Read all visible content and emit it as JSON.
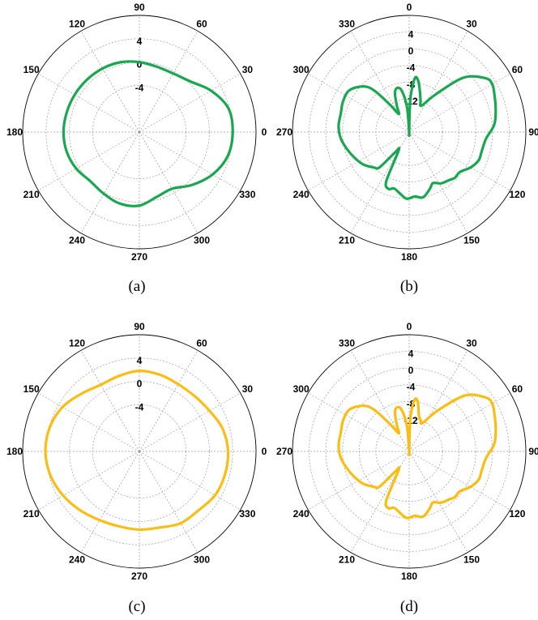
{
  "figure": {
    "captions": [
      "(a)",
      "(b)",
      "(c)",
      "(d)"
    ]
  },
  "chart_data": [
    {
      "type": "polar",
      "caption": "(a)",
      "theta_zero": "east",
      "theta_direction": "counterclockwise",
      "angle_ticks": [
        "0",
        "30",
        "60",
        "90",
        "120",
        "150",
        "180",
        "210",
        "240",
        "270",
        "300",
        "330"
      ],
      "radial_ticks": [
        4,
        0,
        -4
      ],
      "radial_tick_labels": [
        "4",
        "0",
        "-4"
      ],
      "rlim": [
        -12,
        8
      ],
      "grid": true,
      "line_color": "#19a84f",
      "series": [
        {
          "theta": [
            0,
            15,
            30,
            45,
            60,
            75,
            90,
            105,
            120,
            135,
            150,
            165,
            180,
            195,
            210,
            225,
            240,
            255,
            270,
            285,
            300,
            315,
            330,
            345
          ],
          "r": [
            4.0,
            3.8,
            2.2,
            0.3,
            -0.4,
            -0.4,
            0.0,
            0.4,
            0.6,
            0.7,
            0.8,
            0.9,
            1.0,
            0.9,
            0.5,
            -0.1,
            0.2,
            0.7,
            0.6,
            -0.5,
            -0.8,
            0.8,
            2.5,
            3.7
          ]
        }
      ]
    },
    {
      "type": "polar",
      "caption": "(b)",
      "theta_zero": "north",
      "theta_direction": "clockwise",
      "angle_ticks": [
        "0",
        "30",
        "60",
        "90",
        "120",
        "150",
        "180",
        "210",
        "240",
        "270",
        "300",
        "330"
      ],
      "radial_ticks": [
        4,
        0,
        -4,
        -8,
        -12
      ],
      "radial_tick_labels": [
        "4",
        "0",
        "-4",
        "-8",
        "-12"
      ],
      "rlim": [
        -20,
        8
      ],
      "grid": true,
      "line_color": "#19a84f",
      "series": [
        {
          "theta": [
            0,
            2,
            6,
            10,
            15,
            20,
            25,
            35,
            45,
            55,
            60,
            65,
            75,
            85,
            95,
            105,
            112,
            120,
            128,
            135,
            140,
            148,
            155,
            160,
            168,
            175,
            182,
            188,
            195,
            200,
            205,
            210,
            215,
            220,
            225,
            235,
            245,
            255,
            265,
            275,
            285,
            295,
            305,
            315,
            320,
            325,
            330,
            335,
            340,
            345,
            350,
            355,
            358
          ],
          "r": [
            -20,
            -12,
            -7,
            -7.5,
            -10,
            -12,
            -13,
            -9,
            -1.5,
            2.5,
            3,
            2.5,
            1.5,
            0.5,
            -1.5,
            -2,
            -2,
            -3,
            -4.5,
            -4.5,
            -5,
            -5.5,
            -6.5,
            -5.5,
            -4,
            -4.5,
            -4,
            -5,
            -6,
            -5.5,
            -7,
            -15,
            -14,
            -9,
            -8,
            -6.5,
            -5.5,
            -4.5,
            -3.5,
            -3,
            -3,
            -2.5,
            -2.5,
            -4.5,
            -7,
            -12,
            -15,
            -13,
            -10,
            -9,
            -10,
            -14,
            -20
          ]
        }
      ]
    },
    {
      "type": "polar",
      "caption": "(c)",
      "theta_zero": "east",
      "theta_direction": "counterclockwise",
      "angle_ticks": [
        "0",
        "30",
        "60",
        "90",
        "120",
        "150",
        "180",
        "210",
        "240",
        "270",
        "300",
        "330"
      ],
      "radial_ticks": [
        4,
        0,
        -4
      ],
      "radial_tick_labels": [
        "4",
        "0",
        "-4"
      ],
      "rlim": [
        -12,
        8
      ],
      "grid": true,
      "line_color": "#fbbd12",
      "series": [
        {
          "theta": [
            0,
            15,
            30,
            45,
            60,
            75,
            90,
            105,
            120,
            135,
            150,
            165,
            180,
            195,
            210,
            225,
            240,
            255,
            270,
            285,
            300,
            315,
            330,
            345
          ],
          "r": [
            3.2,
            2.8,
            1.9,
            1.4,
            1.3,
            1.6,
            1.8,
            1.4,
            1.2,
            2.0,
            3.2,
            3.9,
            4.1,
            3.8,
            3.1,
            2.3,
            1.6,
            1.3,
            1.4,
            1.5,
            2.2,
            2.3,
            3.0,
            3.2
          ]
        }
      ]
    },
    {
      "type": "polar",
      "caption": "(d)",
      "theta_zero": "north",
      "theta_direction": "clockwise",
      "angle_ticks": [
        "0",
        "30",
        "60",
        "90",
        "120",
        "150",
        "180",
        "210",
        "240",
        "270",
        "300",
        "330"
      ],
      "radial_ticks": [
        4,
        0,
        -4,
        -8,
        -12
      ],
      "radial_tick_labels": [
        "4",
        "0",
        "-4",
        "-8",
        "-12"
      ],
      "rlim": [
        -20,
        8
      ],
      "grid": true,
      "line_color": "#fbbd12",
      "series": [
        {
          "theta": [
            0,
            2,
            6,
            10,
            15,
            20,
            25,
            35,
            45,
            55,
            60,
            65,
            75,
            85,
            95,
            105,
            112,
            120,
            128,
            135,
            140,
            148,
            155,
            160,
            168,
            175,
            182,
            188,
            195,
            200,
            205,
            210,
            215,
            220,
            225,
            235,
            245,
            255,
            265,
            275,
            285,
            295,
            305,
            315,
            320,
            325,
            330,
            335,
            340,
            345,
            350,
            355,
            358
          ],
          "r": [
            -20,
            -12,
            -7.5,
            -8,
            -11,
            -12,
            -12.5,
            -8,
            -1,
            2.5,
            3,
            2.5,
            1.5,
            0.5,
            -1.5,
            -2,
            -2,
            -3,
            -4.5,
            -4.5,
            -5,
            -5.5,
            -6.5,
            -5.5,
            -4,
            -4.5,
            -4,
            -5,
            -6,
            -5.5,
            -7,
            -15,
            -14,
            -9,
            -8,
            -6.5,
            -5.5,
            -4.5,
            -3.5,
            -3,
            -3,
            -2.5,
            -2.5,
            -4.5,
            -7,
            -12,
            -15,
            -13,
            -10,
            -9,
            -10,
            -14,
            -20
          ]
        }
      ]
    }
  ]
}
